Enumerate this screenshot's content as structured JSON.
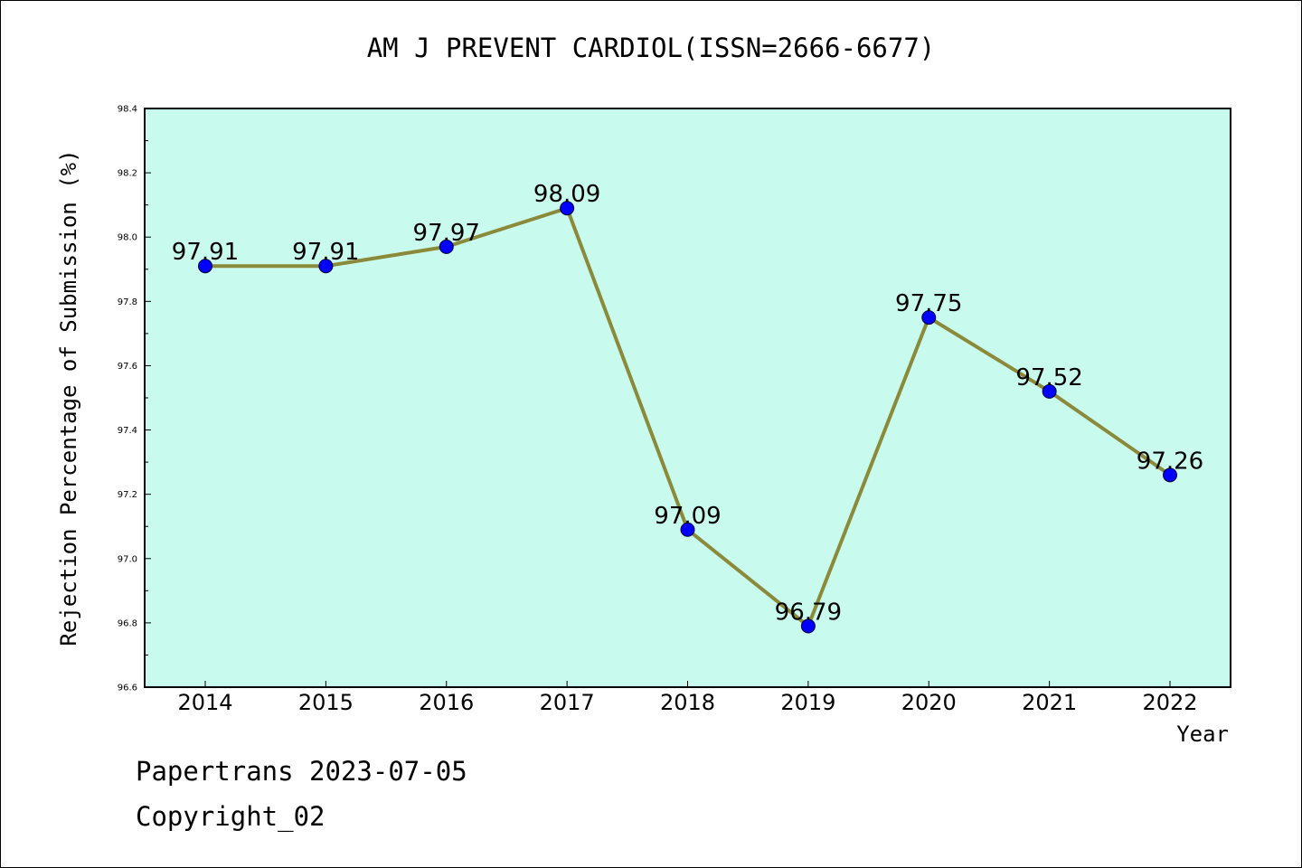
{
  "chart_data": {
    "type": "line",
    "title": "AM J PREVENT CARDIOL(ISSN=2666-6677)",
    "xlabel": "Year",
    "ylabel": "Rejection Percentage of Submission (%)",
    "categories": [
      "2014",
      "2015",
      "2016",
      "2017",
      "2018",
      "2019",
      "2020",
      "2021",
      "2022"
    ],
    "series": [
      {
        "values": [
          97.91,
          97.91,
          97.97,
          98.09,
          97.09,
          96.79,
          97.75,
          97.52,
          97.26
        ]
      }
    ],
    "data_labels": [
      "97.91",
      "97.91",
      "97.97",
      "98.09",
      "97.09",
      "96.79",
      "97.75",
      "97.52",
      "97.26"
    ],
    "ylim": [
      96.6,
      98.4
    ],
    "yticks": [
      "96.6",
      "96.8",
      "97.0",
      "97.2",
      "97.4",
      "97.6",
      "97.8",
      "98.0",
      "98.2",
      "98.4"
    ],
    "grid": false,
    "colors": {
      "plot_background": "#c8fbee",
      "line": "#8b8a3a",
      "marker": "#0000ff"
    }
  },
  "footer": {
    "date_text": "Papertrans 2023-07-05",
    "copyright_text": "Copyright_02"
  }
}
